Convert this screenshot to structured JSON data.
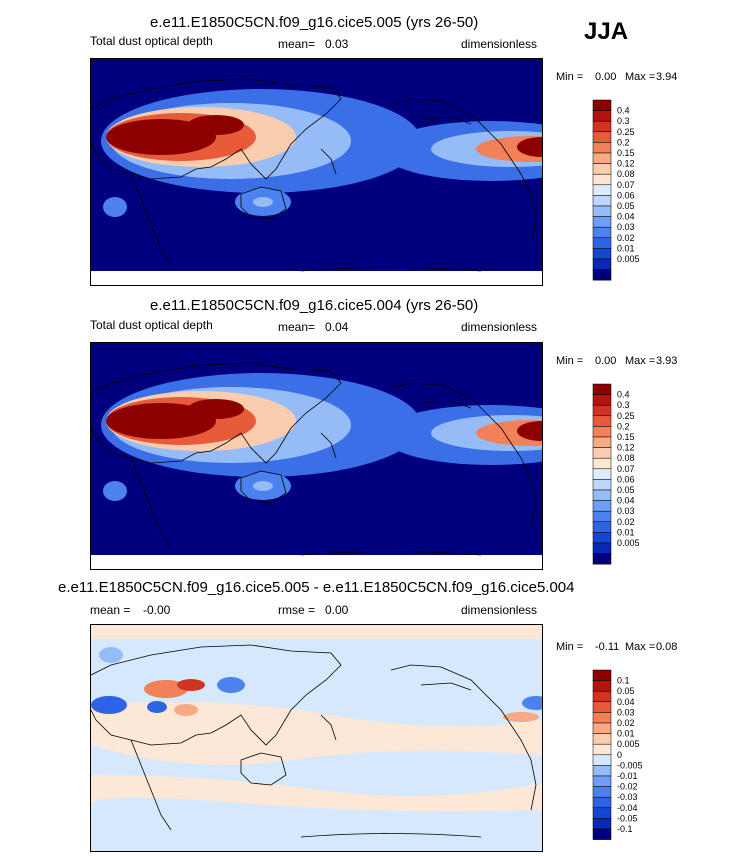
{
  "season": "JJA",
  "colors": {
    "ocean_dark": "#00007f",
    "land_line": "#000000",
    "abs_scale": [
      "#00007f",
      "#0a28b4",
      "#1446d2",
      "#2d64e6",
      "#4b82f0",
      "#6e9ef5",
      "#96bcf8",
      "#bcd7fb",
      "#dcebfd",
      "#fde6d2",
      "#fbcdaf",
      "#f7aa84",
      "#f28058",
      "#e75a3a",
      "#d23220",
      "#b4140f",
      "#8c0000"
    ],
    "diff_scale": [
      "#00007f",
      "#0a28b4",
      "#1446d2",
      "#2d64e6",
      "#4b82f0",
      "#6e9ef5",
      "#96bcf8",
      "#d6e8fb",
      "#fde8d8",
      "#fbcdaf",
      "#f7aa84",
      "#f28058",
      "#e75a3a",
      "#d23220",
      "#b4140f",
      "#8c0000"
    ]
  },
  "chart_data": [
    {
      "type": "heatmap",
      "title": "e.e11.E1850C5CN.f09_g16.cice5.005 (yrs 26-50)",
      "variable": "Total dust optical depth",
      "mean_label": "mean=",
      "mean": "0.03",
      "units": "dimensionless",
      "min_label": "Min =",
      "min": "0.00",
      "max_label": "Max =",
      "max": "3.94",
      "levels": [
        "0.005",
        "0.01",
        "0.02",
        "0.03",
        "0.04",
        "0.05",
        "0.06",
        "0.07",
        "0.08",
        "0.12",
        "0.15",
        "0.2",
        "0.25",
        "0.3",
        "0.4"
      ]
    },
    {
      "type": "heatmap",
      "title": "e.e11.E1850C5CN.f09_g16.cice5.004 (yrs 26-50)",
      "variable": "Total dust optical depth",
      "mean_label": "mean=",
      "mean": "0.04",
      "units": "dimensionless",
      "min_label": "Min =",
      "min": "0.00",
      "max_label": "Max =",
      "max": "3.93",
      "levels": [
        "0.005",
        "0.01",
        "0.02",
        "0.03",
        "0.04",
        "0.05",
        "0.06",
        "0.07",
        "0.08",
        "0.12",
        "0.15",
        "0.2",
        "0.25",
        "0.3",
        "0.4"
      ]
    },
    {
      "type": "heatmap",
      "title": "e.e11.E1850C5CN.f09_g16.cice5.005 - e.e11.E1850C5CN.f09_g16.cice5.004",
      "mean_label": "mean =",
      "mean": "-0.00",
      "rmse_label": "rmse =",
      "rmse": "0.00",
      "units": "dimensionless",
      "min_label": "Min =",
      "min": "-0.11",
      "max_label": "Max =",
      "max": "0.08",
      "levels": [
        "-0.1",
        "-0.05",
        "-0.04",
        "-0.03",
        "-0.02",
        "-0.01",
        "-0.005",
        "0",
        "0.005",
        "0.01",
        "0.02",
        "0.03",
        "0.04",
        "0.05",
        "0.1"
      ]
    }
  ]
}
